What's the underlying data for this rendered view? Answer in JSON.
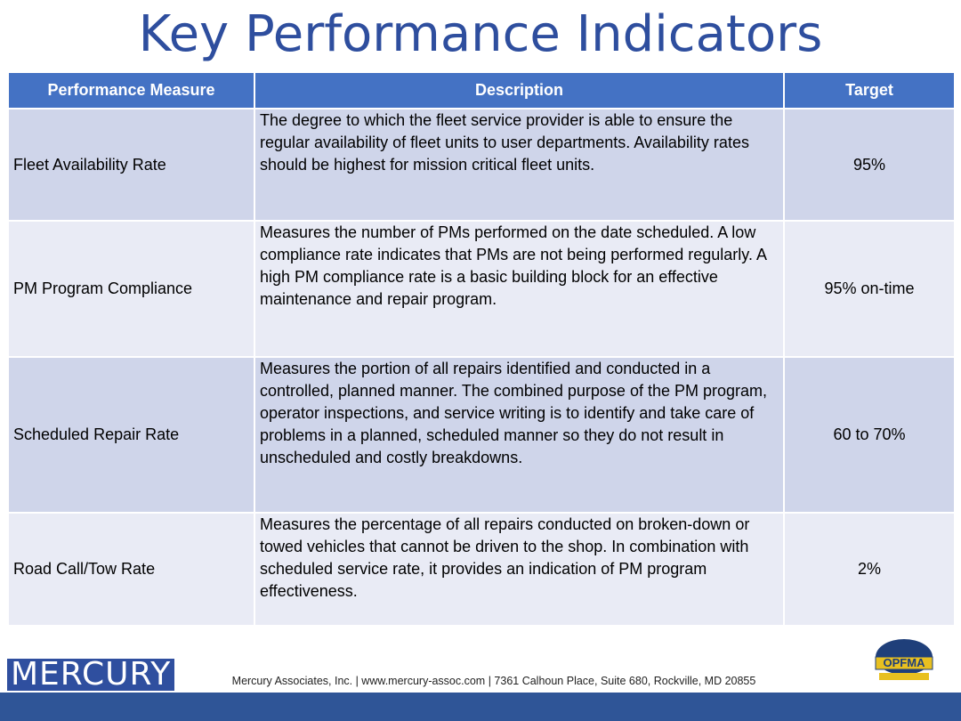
{
  "title": "Key Performance Indicators",
  "table": {
    "header": [
      "Performance Measure",
      "Description",
      "Target"
    ],
    "rows": [
      [
        "Fleet Availability Rate",
        "The degree to which the fleet service provider is able to ensure the regular availability of fleet units to user departments. Availability rates should be highest for mission critical fleet units.",
        "95%"
      ],
      [
        "PM Program Compliance",
        "Measures the number of PMs performed on the date scheduled. A low compliance rate indicates that PMs are not being performed regularly. A high PM compliance rate is a basic building block for an effective maintenance and repair program.",
        "95% on-time"
      ],
      [
        "Scheduled Repair Rate",
        "Measures the portion of all repairs identified and conducted in a controlled, planned manner. The combined purpose of the PM program, operator inspections, and service writing is to identify and take care of problems in a planned, scheduled manner so they do not result in unscheduled and costly breakdowns.",
        "60 to 70%"
      ],
      [
        "Road Call/Tow Rate",
        "Measures the percentage of all repairs conducted on broken-down or towed vehicles that cannot be driven to the shop. In combination with scheduled service rate, it provides an indication of PM program effectiveness.",
        "2%"
      ]
    ]
  },
  "footer": {
    "left_logo": "MERCURY",
    "text": "Mercury Associates, Inc. | www.mercury-assoc.com | 7361 Calhoun Place, Suite 680, Rockville, MD 20855",
    "right_logo": "OPFMA"
  }
}
